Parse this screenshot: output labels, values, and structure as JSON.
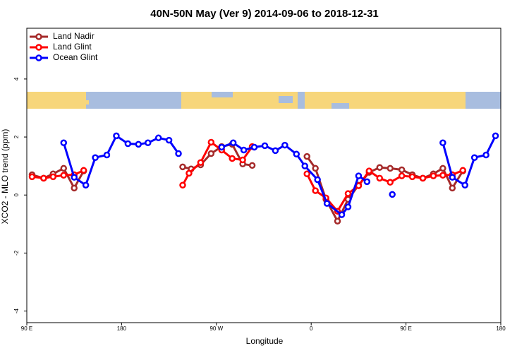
{
  "chart_data": {
    "type": "line",
    "title": "40N-50N May (Ver 9)   2014-09-06 to 2018-12-31",
    "x_label": "Longitude",
    "y_label": "XCO2 - MLO trend (ppm)",
    "xlim": [
      90,
      540
    ],
    "ylim": [
      -4.4,
      5.75
    ],
    "xticks": [
      {
        "value": 90,
        "label": "90 E"
      },
      180,
      {
        "value": 270,
        "label": "90 W"
      },
      {
        "value": 360,
        "label": "0"
      },
      {
        "value": 450,
        "label": "90 E"
      },
      {
        "value": 540,
        "label": "180"
      }
    ],
    "yticks": [
      -4,
      -2,
      0,
      2,
      4
    ],
    "legend": "top-left",
    "series": [
      {
        "name": "Land Nadir",
        "color": "#a52a2a",
        "x": [
          95,
          106,
          115,
          125,
          135,
          144,
          null,
          238,
          246,
          255,
          265,
          275,
          285,
          295,
          304,
          null,
          356,
          364,
          374,
          385,
          395,
          405,
          415,
          425,
          435,
          446,
          456,
          466,
          476,
          485,
          494,
          504
        ],
        "values": [
          0.7,
          0.58,
          0.73,
          0.92,
          0.24,
          0.83,
          null,
          0.97,
          0.9,
          1.04,
          1.43,
          1.67,
          1.75,
          1.07,
          1.02,
          null,
          1.33,
          0.92,
          -0.15,
          -0.9,
          -0.15,
          0.34,
          0.78,
          0.95,
          0.92,
          0.87,
          0.7,
          0.58,
          0.73,
          0.92,
          0.24,
          0.83
        ]
      },
      {
        "name": "Land Glint",
        "color": "#ff0000",
        "x": [
          95,
          106,
          115,
          125,
          135,
          144,
          null,
          238,
          244,
          255,
          265,
          275,
          285,
          295,
          304,
          null,
          356,
          364,
          374,
          385,
          395,
          405,
          415,
          425,
          435,
          446,
          456,
          466,
          476,
          485,
          494,
          504
        ],
        "values": [
          0.63,
          0.58,
          0.63,
          0.68,
          0.7,
          0.85,
          null,
          0.34,
          0.75,
          1.12,
          1.82,
          1.55,
          1.26,
          1.21,
          1.67,
          null,
          0.73,
          0.15,
          -0.1,
          -0.56,
          0.05,
          0.32,
          0.83,
          0.58,
          0.44,
          0.66,
          0.63,
          0.58,
          0.66,
          0.68,
          0.7,
          0.85
        ]
      },
      {
        "name": "Ocean Glint",
        "color": "#0000ff",
        "x": [
          125,
          135,
          146,
          155,
          166,
          175,
          186,
          196,
          205,
          215,
          225,
          234,
          null,
          275,
          286,
          296,
          306,
          316,
          326,
          335,
          346,
          354,
          366,
          375,
          389,
          395,
          405,
          413,
          null,
          437,
          null,
          485,
          494,
          506,
          515,
          526,
          535
        ],
        "values": [
          1.8,
          0.61,
          0.34,
          1.29,
          1.38,
          2.04,
          1.77,
          1.75,
          1.8,
          1.97,
          1.89,
          1.43,
          null,
          1.65,
          1.8,
          1.55,
          1.65,
          1.7,
          1.53,
          1.72,
          1.41,
          1.0,
          0.53,
          -0.29,
          -0.68,
          -0.41,
          0.66,
          0.46,
          null,
          0.02,
          null,
          1.8,
          0.61,
          0.34,
          1.29,
          1.38,
          2.04
        ]
      }
    ]
  }
}
